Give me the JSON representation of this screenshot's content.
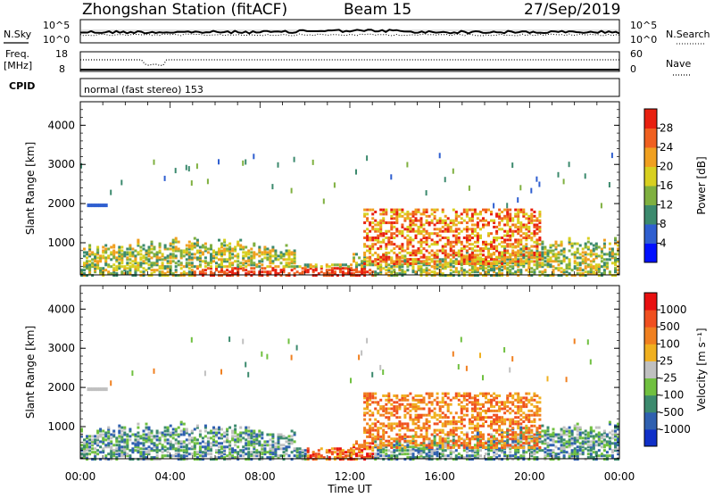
{
  "header": {
    "station": "Zhongshan Station (fitACF)",
    "beam": "Beam 15",
    "date": "27/Sep/2019"
  },
  "strips": {
    "nsky_label": "N.Sky",
    "nsky_ticks": [
      "10^5",
      "10^0"
    ],
    "nsearch_label": "N.Search",
    "nsearch_ticks": [
      "10^5",
      "10^0"
    ],
    "freq_label_1": "Freq.",
    "freq_label_2": "[MHz]",
    "freq_ticks": [
      "18",
      "8"
    ],
    "nave_label": "Nave",
    "nave_ticks": [
      "60",
      "0"
    ],
    "cpid_label": "CPID",
    "cpid_text": "normal (fast stereo) 153"
  },
  "chart_data": [
    {
      "type": "heatmap",
      "name": "power-panel",
      "xlabel": "Time UT",
      "ylabel": "Slant Range [km]",
      "x_ticks": [
        "00:00",
        "04:00",
        "08:00",
        "12:00",
        "16:00",
        "20:00",
        "00:00"
      ],
      "x_range_hours": [
        0,
        24
      ],
      "y_ticks": [
        1000,
        2000,
        3000,
        4000
      ],
      "ylim": [
        180,
        4600
      ],
      "colorbar": {
        "label": "Power [dB]",
        "ticks": [
          "4",
          "8",
          "12",
          "16",
          "20",
          "24",
          "28"
        ],
        "colors": [
          "#0010ff",
          "#2f5fd0",
          "#3c8a6e",
          "#7fb040",
          "#d8d020",
          "#f0a020",
          "#f06020",
          "#e82010"
        ]
      }
    },
    {
      "type": "heatmap",
      "name": "velocity-panel",
      "xlabel": "Time UT",
      "ylabel": "Slant Range [km]",
      "x_ticks": [
        "00:00",
        "04:00",
        "08:00",
        "12:00",
        "16:00",
        "20:00",
        "00:00"
      ],
      "x_range_hours": [
        0,
        24
      ],
      "y_ticks": [
        1000,
        2000,
        3000,
        4000
      ],
      "ylim": [
        180,
        4600
      ],
      "colorbar": {
        "label": "Velocity [m s⁻¹]",
        "ticks": [
          "1000",
          "500",
          "100",
          "25",
          "-25",
          "-100",
          "-500",
          "-1000"
        ],
        "colors": [
          "#1030c8",
          "#2f60b0",
          "#3c8a6e",
          "#70c040",
          "#c0c0c0",
          "#f0b020",
          "#f08020",
          "#f05020",
          "#e81010"
        ]
      }
    }
  ]
}
